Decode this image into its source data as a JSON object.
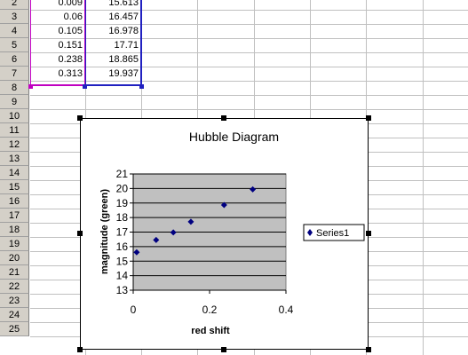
{
  "spreadsheet": {
    "row_numbers": [
      "2",
      "3",
      "4",
      "5",
      "6",
      "7",
      "8",
      "9",
      "10",
      "11",
      "12",
      "13",
      "14",
      "15",
      "16",
      "17",
      "18",
      "19",
      "20",
      "21",
      "22",
      "23",
      "24",
      "25"
    ],
    "data_rows": [
      {
        "a": "0.009",
        "b": "15.613"
      },
      {
        "a": "0.06",
        "b": "16.457"
      },
      {
        "a": "0.105",
        "b": "16.978"
      },
      {
        "a": "0.151",
        "b": "17.71"
      },
      {
        "a": "0.238",
        "b": "18.865"
      },
      {
        "a": "0.313",
        "b": "19.937"
      }
    ]
  },
  "chart_data": {
    "type": "scatter",
    "title": "Hubble Diagram",
    "xlabel": "red shift",
    "ylabel": "magnitude (green)",
    "xlim": [
      0,
      0.4
    ],
    "ylim": [
      13,
      21
    ],
    "x_ticks": [
      "0",
      "0.2",
      "0.4"
    ],
    "y_ticks": [
      "13",
      "14",
      "15",
      "16",
      "17",
      "18",
      "19",
      "20",
      "21"
    ],
    "plot_area_color": "#c0c0c0",
    "marker_color": "#000080",
    "grid": true,
    "legend_position": "right",
    "series": [
      {
        "name": "Series1",
        "points": [
          {
            "x": 0.009,
            "y": 15.613
          },
          {
            "x": 0.06,
            "y": 16.457
          },
          {
            "x": 0.105,
            "y": 16.978
          },
          {
            "x": 0.151,
            "y": 17.71
          },
          {
            "x": 0.238,
            "y": 18.865
          },
          {
            "x": 0.313,
            "y": 19.937
          }
        ]
      }
    ]
  }
}
